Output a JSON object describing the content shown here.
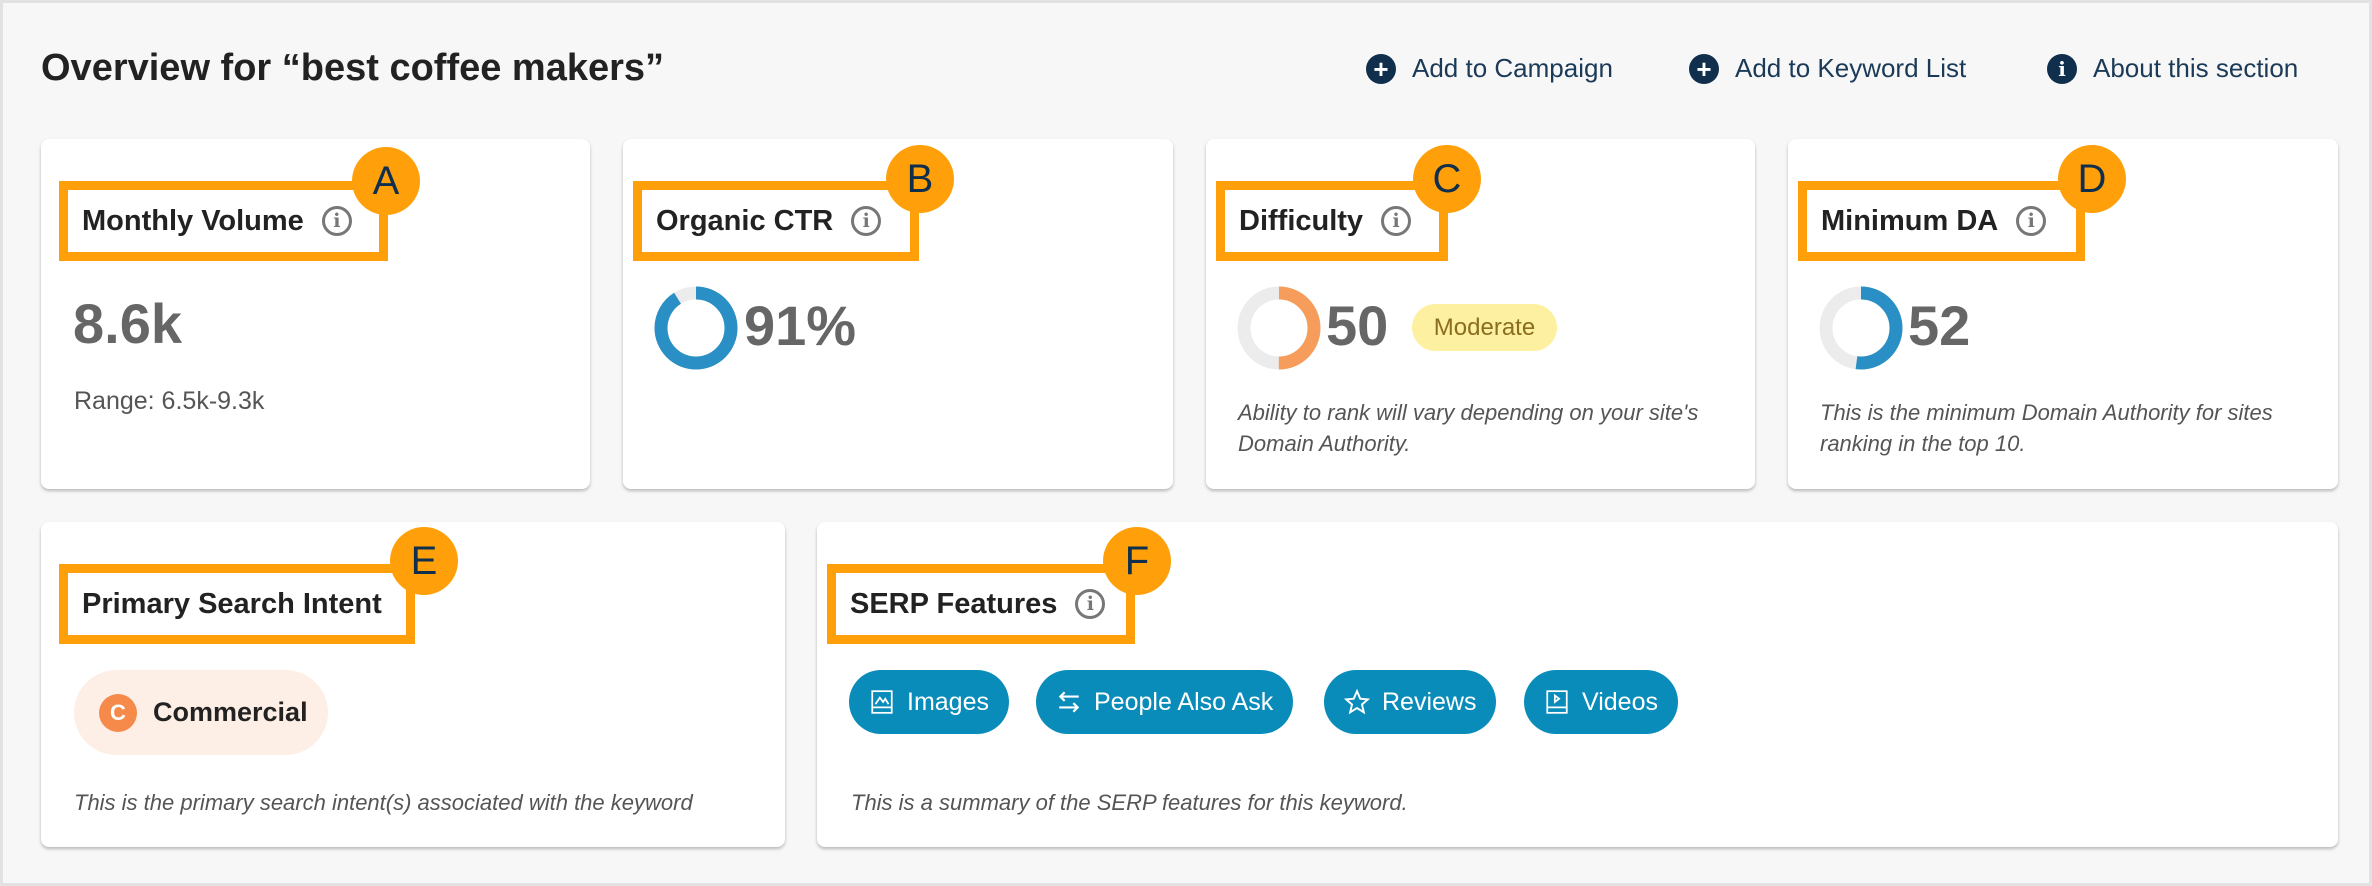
{
  "header": {
    "title": "Overview for “best coffee makers”",
    "actions": [
      {
        "label": "Add to Campaign",
        "icon": "plus-circle-icon"
      },
      {
        "label": "Add to Keyword List",
        "icon": "plus-circle-icon"
      },
      {
        "label": "About this section",
        "icon": "info-circle-icon"
      }
    ]
  },
  "cards": {
    "monthly_volume": {
      "badge": "A",
      "label": "Monthly Volume",
      "value": "8.6k",
      "range": "Range: 6.5k-9.3k"
    },
    "organic_ctr": {
      "badge": "B",
      "label": "Organic CTR",
      "value": "91%",
      "percent": 91
    },
    "difficulty": {
      "badge": "C",
      "label": "Difficulty",
      "value": "50",
      "level": "Moderate",
      "description": "Ability to rank will vary depending on your site's Domain Authority.",
      "percent": 50,
      "color": "#f79d5c"
    },
    "minimum_da": {
      "badge": "D",
      "label": "Minimum DA",
      "value": "52",
      "description": "This is the minimum Domain Authority for sites ranking in the top 10.",
      "percent": 52
    },
    "search_intent": {
      "badge": "E",
      "label": "Primary Search Intent",
      "intent_letter": "C",
      "intent": "Commercial",
      "description": "This is the primary search intent(s) associated with the keyword"
    },
    "serp_features": {
      "badge": "F",
      "label": "SERP Features",
      "features": [
        "Images",
        "People Also Ask",
        "Reviews",
        "Videos"
      ],
      "description": "This is a summary of the SERP features for this keyword."
    }
  },
  "colors": {
    "annotation": "#ffa00a",
    "chip": "#0a8cba",
    "ctr": "#2a8fc4"
  }
}
